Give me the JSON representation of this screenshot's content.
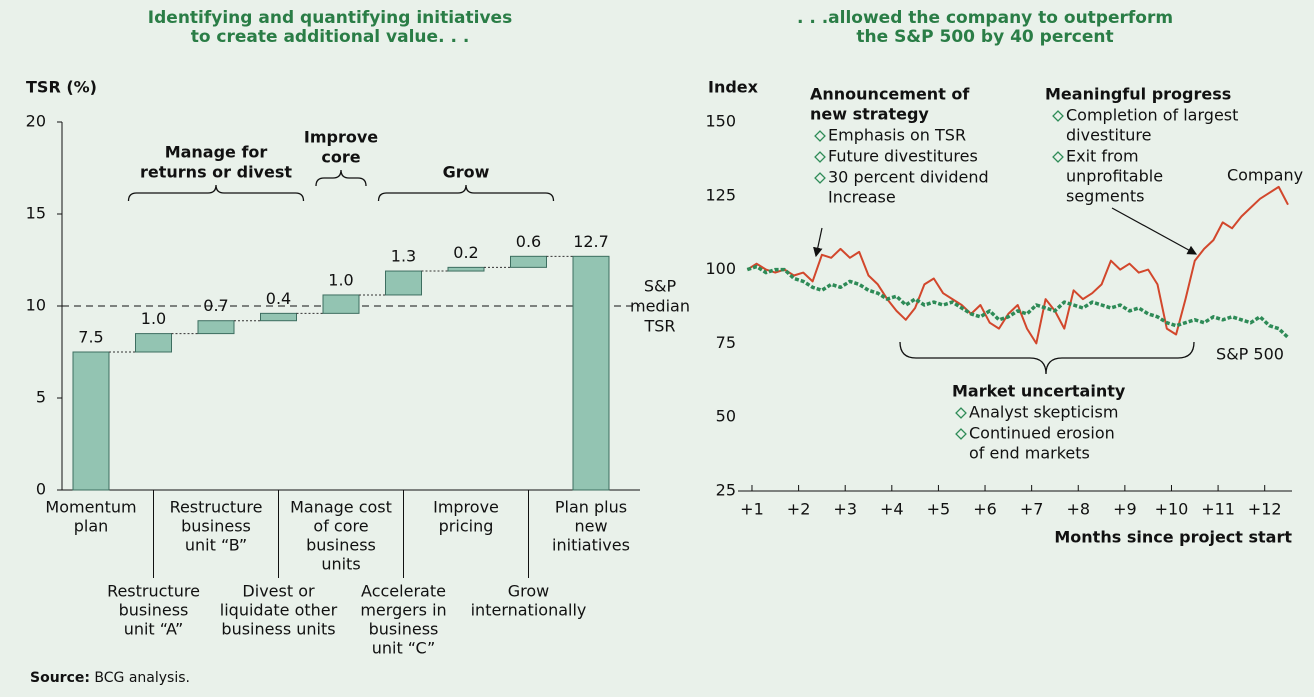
{
  "chart_data": [
    {
      "type": "waterfall",
      "title": [
        "Identifying and quantifying initiatives",
        "to create additional value. . ."
      ],
      "y_label": "TSR (%)",
      "categories": [
        [
          "Momentum",
          "plan"
        ],
        [
          "Restructure",
          "business",
          "unit “A”"
        ],
        [
          "Restructure",
          "business",
          "unit “B”"
        ],
        [
          "Divest or",
          "liquidate other",
          "business units"
        ],
        [
          "Manage cost",
          "of core",
          "business",
          "units"
        ],
        [
          "Accelerate",
          "mergers in",
          "business",
          "unit “C”"
        ],
        [
          "Improve",
          "pricing"
        ],
        [
          "Grow",
          "internationally"
        ],
        [
          "Plan plus",
          "new",
          "initiatives"
        ]
      ],
      "values": [
        7.5,
        1.0,
        0.7,
        0.4,
        1.0,
        1.3,
        0.2,
        0.6,
        12.7
      ],
      "value_labels": [
        "7.5",
        "1.0",
        "0.7",
        "0.4",
        "1.0",
        "1.3",
        "0.2",
        "0.6",
        "12.7"
      ],
      "color": "#93c4b2",
      "edge_color": "#3d6e60",
      "ylim": [
        0,
        20
      ],
      "yticks": [
        0,
        5,
        10,
        15,
        20
      ],
      "reference": {
        "value": 10,
        "label": [
          "S&P",
          "median",
          "TSR"
        ]
      },
      "groups": [
        [
          "Manage for",
          "returns or divest"
        ],
        [
          "Improve",
          "core"
        ],
        [
          "Grow"
        ]
      ]
    },
    {
      "type": "line",
      "title": [
        ". . .allowed the company to outperform",
        "the S&P 500 by 40 percent"
      ],
      "y_label": "Index",
      "x_label": "Months since project start",
      "x": [
        0.9,
        1.1,
        1.3,
        1.5,
        1.7,
        1.9,
        2.1,
        2.3,
        2.5,
        2.7,
        2.9,
        3.1,
        3.3,
        3.5,
        3.7,
        3.9,
        4.1,
        4.3,
        4.5,
        4.7,
        4.9,
        5.1,
        5.3,
        5.5,
        5.7,
        5.9,
        6.1,
        6.3,
        6.5,
        6.7,
        6.9,
        7.1,
        7.3,
        7.5,
        7.7,
        7.9,
        8.1,
        8.3,
        8.5,
        8.7,
        8.9,
        9.1,
        9.3,
        9.5,
        9.7,
        9.9,
        10.1,
        10.3,
        10.5,
        10.7,
        10.9,
        11.1,
        11.3,
        11.5,
        11.7,
        11.9,
        12.1,
        12.3,
        12.5
      ],
      "series": [
        {
          "name": "Company",
          "color": "#d2472c",
          "dashed": false,
          "values": [
            100,
            102,
            100,
            99,
            100,
            98,
            99,
            96,
            105,
            104,
            107,
            104,
            106,
            98,
            95,
            90,
            86,
            83,
            87,
            95,
            97,
            92,
            90,
            88,
            85,
            88,
            82,
            80,
            85,
            88,
            80,
            75,
            90,
            86,
            80,
            93,
            90,
            92,
            95,
            103,
            100,
            102,
            99,
            100,
            95,
            80,
            78,
            90,
            103,
            107,
            110,
            116,
            114,
            118,
            121,
            124,
            126,
            128,
            122
          ]
        },
        {
          "name": "S&P 500",
          "color": "#2e8b57",
          "dashed": true,
          "values": [
            100,
            101,
            99,
            100,
            100,
            97,
            96,
            94,
            93,
            95,
            94,
            96,
            95,
            93,
            92,
            90,
            91,
            88,
            90,
            88,
            89,
            88,
            89,
            87,
            85,
            84,
            86,
            83,
            84,
            86,
            85,
            88,
            87,
            86,
            89,
            88,
            87,
            89,
            88,
            87,
            88,
            86,
            87,
            85,
            84,
            82,
            81,
            82,
            83,
            82,
            84,
            83,
            84,
            83,
            82,
            84,
            81,
            80,
            77
          ]
        }
      ],
      "xlim": [
        0.7,
        12.5
      ],
      "xticks": [
        {
          "value": 1,
          "label": "+1"
        },
        {
          "value": 2,
          "label": "+2"
        },
        {
          "value": 3,
          "label": "+3"
        },
        {
          "value": 4,
          "label": "+4"
        },
        {
          "value": 5,
          "label": "+5"
        },
        {
          "value": 6,
          "label": "+6"
        },
        {
          "value": 7,
          "label": "+7"
        },
        {
          "value": 8,
          "label": "+8"
        },
        {
          "value": 9,
          "label": "+9"
        },
        {
          "value": 10,
          "label": "+10"
        },
        {
          "value": 11,
          "label": "+11"
        },
        {
          "value": 12,
          "label": "+12"
        }
      ],
      "ylim": [
        25,
        150
      ],
      "yticks": [
        25,
        50,
        75,
        100,
        125,
        150
      ],
      "annotations": [
        {
          "title": [
            "Announcement of",
            "new strategy"
          ],
          "items": [
            [
              "Emphasis on TSR"
            ],
            [
              "Future divestitures"
            ],
            [
              "30 percent dividend",
              "Increase"
            ]
          ]
        },
        {
          "title": [
            "Meaningful progress"
          ],
          "items": [
            [
              "Completion of largest",
              "divestiture"
            ],
            [
              "Exit from",
              "unprofitable",
              "segments"
            ]
          ]
        },
        {
          "title": [
            "Market uncertainty"
          ],
          "items": [
            [
              "Analyst skepticism"
            ],
            [
              "Continued erosion",
              "of end markets"
            ]
          ]
        }
      ]
    }
  ],
  "source_label": "Source:",
  "source": "BCG analysis."
}
